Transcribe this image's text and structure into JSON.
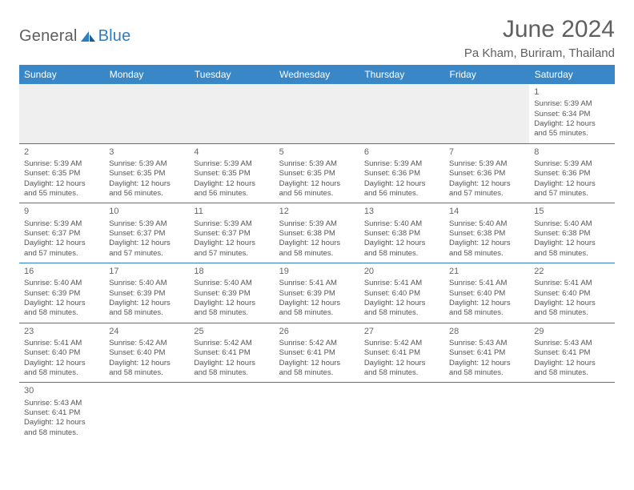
{
  "brand": {
    "a": "General",
    "b": "Blue"
  },
  "title": "June 2024",
  "location": "Pa Kham, Buriram, Thailand",
  "weekday_labels": [
    "Sunday",
    "Monday",
    "Tuesday",
    "Wednesday",
    "Thursday",
    "Friday",
    "Saturday"
  ],
  "header_bg": "#3a87c8",
  "header_fg": "#ffffff",
  "rule_color": "#2f7dc0",
  "text_color": "#555555",
  "empty_bg": "#efefef",
  "cell_fontsize": 9.5,
  "month_fontsize": 30,
  "loc_fontsize": 15,
  "weeks": [
    [
      null,
      null,
      null,
      null,
      null,
      null,
      {
        "n": "1",
        "rise": "5:39 AM",
        "set": "6:34 PM",
        "dl": "12 hours and 55 minutes."
      }
    ],
    [
      {
        "n": "2",
        "rise": "5:39 AM",
        "set": "6:35 PM",
        "dl": "12 hours and 55 minutes."
      },
      {
        "n": "3",
        "rise": "5:39 AM",
        "set": "6:35 PM",
        "dl": "12 hours and 56 minutes."
      },
      {
        "n": "4",
        "rise": "5:39 AM",
        "set": "6:35 PM",
        "dl": "12 hours and 56 minutes."
      },
      {
        "n": "5",
        "rise": "5:39 AM",
        "set": "6:35 PM",
        "dl": "12 hours and 56 minutes."
      },
      {
        "n": "6",
        "rise": "5:39 AM",
        "set": "6:36 PM",
        "dl": "12 hours and 56 minutes."
      },
      {
        "n": "7",
        "rise": "5:39 AM",
        "set": "6:36 PM",
        "dl": "12 hours and 57 minutes."
      },
      {
        "n": "8",
        "rise": "5:39 AM",
        "set": "6:36 PM",
        "dl": "12 hours and 57 minutes."
      }
    ],
    [
      {
        "n": "9",
        "rise": "5:39 AM",
        "set": "6:37 PM",
        "dl": "12 hours and 57 minutes."
      },
      {
        "n": "10",
        "rise": "5:39 AM",
        "set": "6:37 PM",
        "dl": "12 hours and 57 minutes."
      },
      {
        "n": "11",
        "rise": "5:39 AM",
        "set": "6:37 PM",
        "dl": "12 hours and 57 minutes."
      },
      {
        "n": "12",
        "rise": "5:39 AM",
        "set": "6:38 PM",
        "dl": "12 hours and 58 minutes."
      },
      {
        "n": "13",
        "rise": "5:40 AM",
        "set": "6:38 PM",
        "dl": "12 hours and 58 minutes."
      },
      {
        "n": "14",
        "rise": "5:40 AM",
        "set": "6:38 PM",
        "dl": "12 hours and 58 minutes."
      },
      {
        "n": "15",
        "rise": "5:40 AM",
        "set": "6:38 PM",
        "dl": "12 hours and 58 minutes."
      }
    ],
    [
      {
        "n": "16",
        "rise": "5:40 AM",
        "set": "6:39 PM",
        "dl": "12 hours and 58 minutes."
      },
      {
        "n": "17",
        "rise": "5:40 AM",
        "set": "6:39 PM",
        "dl": "12 hours and 58 minutes."
      },
      {
        "n": "18",
        "rise": "5:40 AM",
        "set": "6:39 PM",
        "dl": "12 hours and 58 minutes."
      },
      {
        "n": "19",
        "rise": "5:41 AM",
        "set": "6:39 PM",
        "dl": "12 hours and 58 minutes."
      },
      {
        "n": "20",
        "rise": "5:41 AM",
        "set": "6:40 PM",
        "dl": "12 hours and 58 minutes."
      },
      {
        "n": "21",
        "rise": "5:41 AM",
        "set": "6:40 PM",
        "dl": "12 hours and 58 minutes."
      },
      {
        "n": "22",
        "rise": "5:41 AM",
        "set": "6:40 PM",
        "dl": "12 hours and 58 minutes."
      }
    ],
    [
      {
        "n": "23",
        "rise": "5:41 AM",
        "set": "6:40 PM",
        "dl": "12 hours and 58 minutes."
      },
      {
        "n": "24",
        "rise": "5:42 AM",
        "set": "6:40 PM",
        "dl": "12 hours and 58 minutes."
      },
      {
        "n": "25",
        "rise": "5:42 AM",
        "set": "6:41 PM",
        "dl": "12 hours and 58 minutes."
      },
      {
        "n": "26",
        "rise": "5:42 AM",
        "set": "6:41 PM",
        "dl": "12 hours and 58 minutes."
      },
      {
        "n": "27",
        "rise": "5:42 AM",
        "set": "6:41 PM",
        "dl": "12 hours and 58 minutes."
      },
      {
        "n": "28",
        "rise": "5:43 AM",
        "set": "6:41 PM",
        "dl": "12 hours and 58 minutes."
      },
      {
        "n": "29",
        "rise": "5:43 AM",
        "set": "6:41 PM",
        "dl": "12 hours and 58 minutes."
      }
    ],
    [
      {
        "n": "30",
        "rise": "5:43 AM",
        "set": "6:41 PM",
        "dl": "12 hours and 58 minutes."
      },
      null,
      null,
      null,
      null,
      null,
      null
    ]
  ]
}
